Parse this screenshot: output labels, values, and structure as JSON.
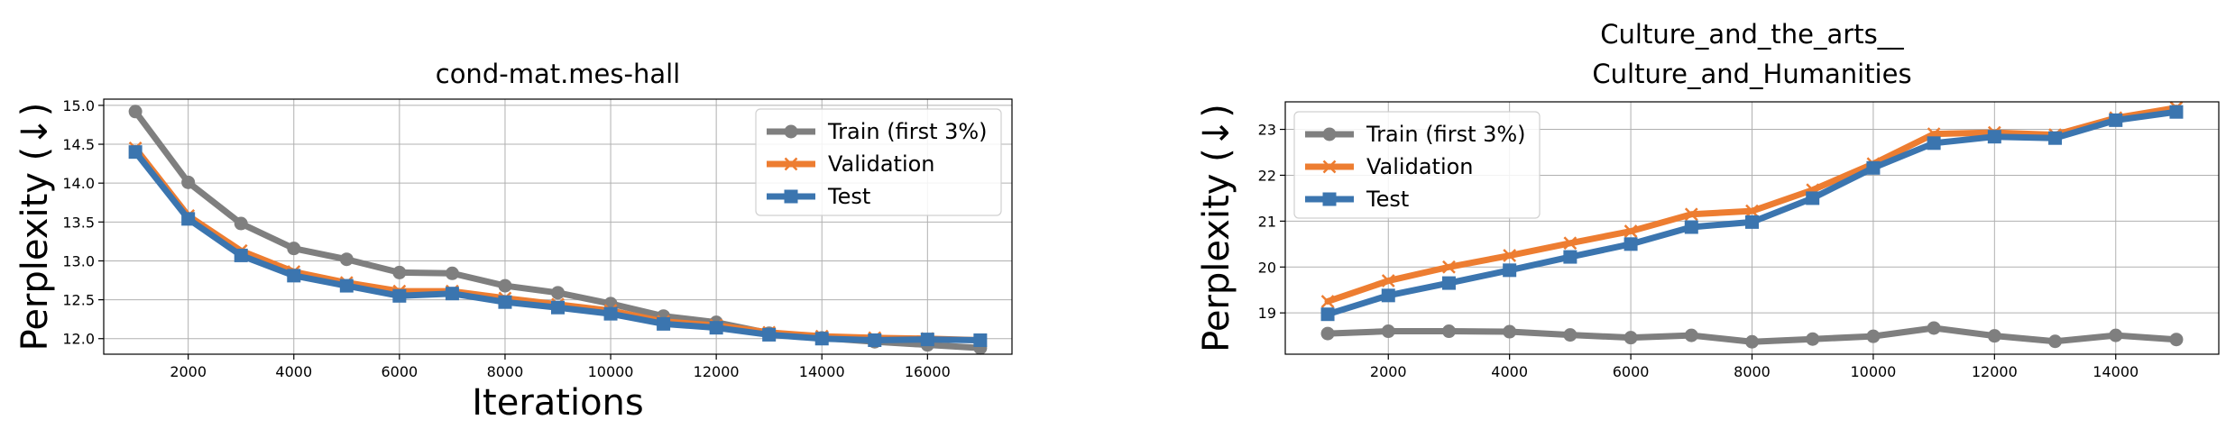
{
  "chart_data": [
    {
      "type": "line",
      "title": "cond-mat.mes-hall",
      "xlabel": "Iterations",
      "ylabel": "Perplexity (↓)",
      "xlim": [
        400,
        17600
      ],
      "ylim": [
        11.8,
        15.08
      ],
      "xticks": [
        2000,
        4000,
        6000,
        8000,
        10000,
        12000,
        14000,
        16000
      ],
      "xtick_labels": [
        "2000",
        "4000",
        "6000",
        "8000",
        "10000",
        "12000",
        "14000",
        "16000"
      ],
      "yticks": [
        12.0,
        12.5,
        13.0,
        13.5,
        14.0,
        14.5,
        15.0
      ],
      "ytick_labels": [
        "12.0",
        "12.5",
        "13.0",
        "13.5",
        "14.0",
        "14.5",
        "15.0"
      ],
      "grid": true,
      "legend_position": "top-right",
      "x": [
        1000,
        2000,
        3000,
        4000,
        5000,
        6000,
        7000,
        8000,
        9000,
        10000,
        11000,
        12000,
        13000,
        14000,
        15000,
        16000,
        17000
      ],
      "series": [
        {
          "name": "Train (first 3%)",
          "color": "#7f7f7f",
          "marker": "circle",
          "values": [
            14.92,
            14.01,
            13.48,
            13.16,
            13.02,
            12.85,
            12.84,
            12.68,
            12.59,
            12.45,
            12.29,
            12.21,
            12.07,
            12.01,
            11.96,
            11.92,
            11.88
          ]
        },
        {
          "name": "Validation",
          "color": "#ed7d31",
          "marker": "x",
          "values": [
            14.45,
            13.58,
            13.13,
            12.86,
            12.72,
            12.61,
            12.61,
            12.52,
            12.44,
            12.36,
            12.22,
            12.17,
            12.08,
            12.03,
            12.01,
            12.0,
            11.98
          ]
        },
        {
          "name": "Test",
          "color": "#3b75af",
          "marker": "square",
          "values": [
            14.4,
            13.54,
            13.07,
            12.81,
            12.68,
            12.55,
            12.58,
            12.47,
            12.4,
            12.32,
            12.19,
            12.14,
            12.05,
            12.0,
            11.98,
            11.99,
            11.98
          ]
        }
      ]
    },
    {
      "type": "line",
      "title": "Culture_and_the_arts__ Culture_and_Humanities",
      "title_lines": [
        "Culture_and_the_arts__",
        "Culture_and_Humanities"
      ],
      "xlabel": "",
      "ylabel": "Perplexity (↓)",
      "xlim": [
        300,
        15700
      ],
      "ylim": [
        18.1,
        23.6
      ],
      "xticks": [
        2000,
        4000,
        6000,
        8000,
        10000,
        12000,
        14000
      ],
      "xtick_labels": [
        "2000",
        "4000",
        "6000",
        "8000",
        "10000",
        "12000",
        "14000"
      ],
      "yticks": [
        19,
        20,
        21,
        22,
        23
      ],
      "ytick_labels": [
        "19",
        "20",
        "21",
        "22",
        "23"
      ],
      "grid": true,
      "legend_position": "top-left",
      "x": [
        1000,
        2000,
        3000,
        4000,
        5000,
        6000,
        7000,
        8000,
        9000,
        10000,
        11000,
        12000,
        13000,
        14000,
        15000
      ],
      "series": [
        {
          "name": "Train (first 3%)",
          "color": "#7f7f7f",
          "marker": "circle",
          "values": [
            18.55,
            18.6,
            18.6,
            18.59,
            18.52,
            18.46,
            18.51,
            18.37,
            18.43,
            18.49,
            18.67,
            18.5,
            18.38,
            18.51,
            18.42
          ]
        },
        {
          "name": "Validation",
          "color": "#ed7d31",
          "marker": "x",
          "values": [
            19.25,
            19.7,
            20.0,
            20.25,
            20.52,
            20.78,
            21.15,
            21.22,
            21.68,
            22.25,
            22.9,
            22.93,
            22.88,
            23.25,
            23.47
          ]
        },
        {
          "name": "Test",
          "color": "#3b75af",
          "marker": "square",
          "values": [
            18.97,
            19.38,
            19.65,
            19.93,
            20.22,
            20.5,
            20.87,
            20.98,
            21.5,
            22.16,
            22.7,
            22.84,
            22.81,
            23.2,
            23.38
          ]
        }
      ]
    }
  ]
}
